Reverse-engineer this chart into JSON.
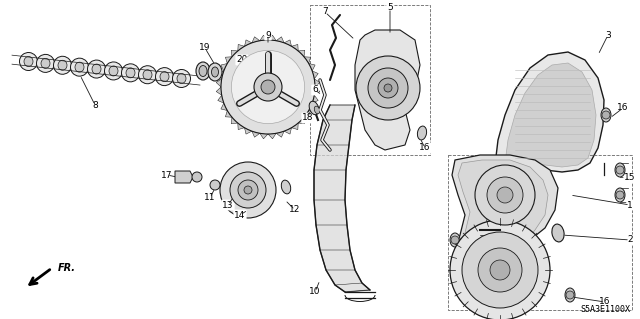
{
  "bg_color": "#ffffff",
  "line_color": "#1a1a1a",
  "label_color": "#000000",
  "diagram_code": "S5A3E1100X",
  "label_fontsize": 6.5,
  "figsize": [
    6.4,
    3.19
  ],
  "dpi": 100
}
